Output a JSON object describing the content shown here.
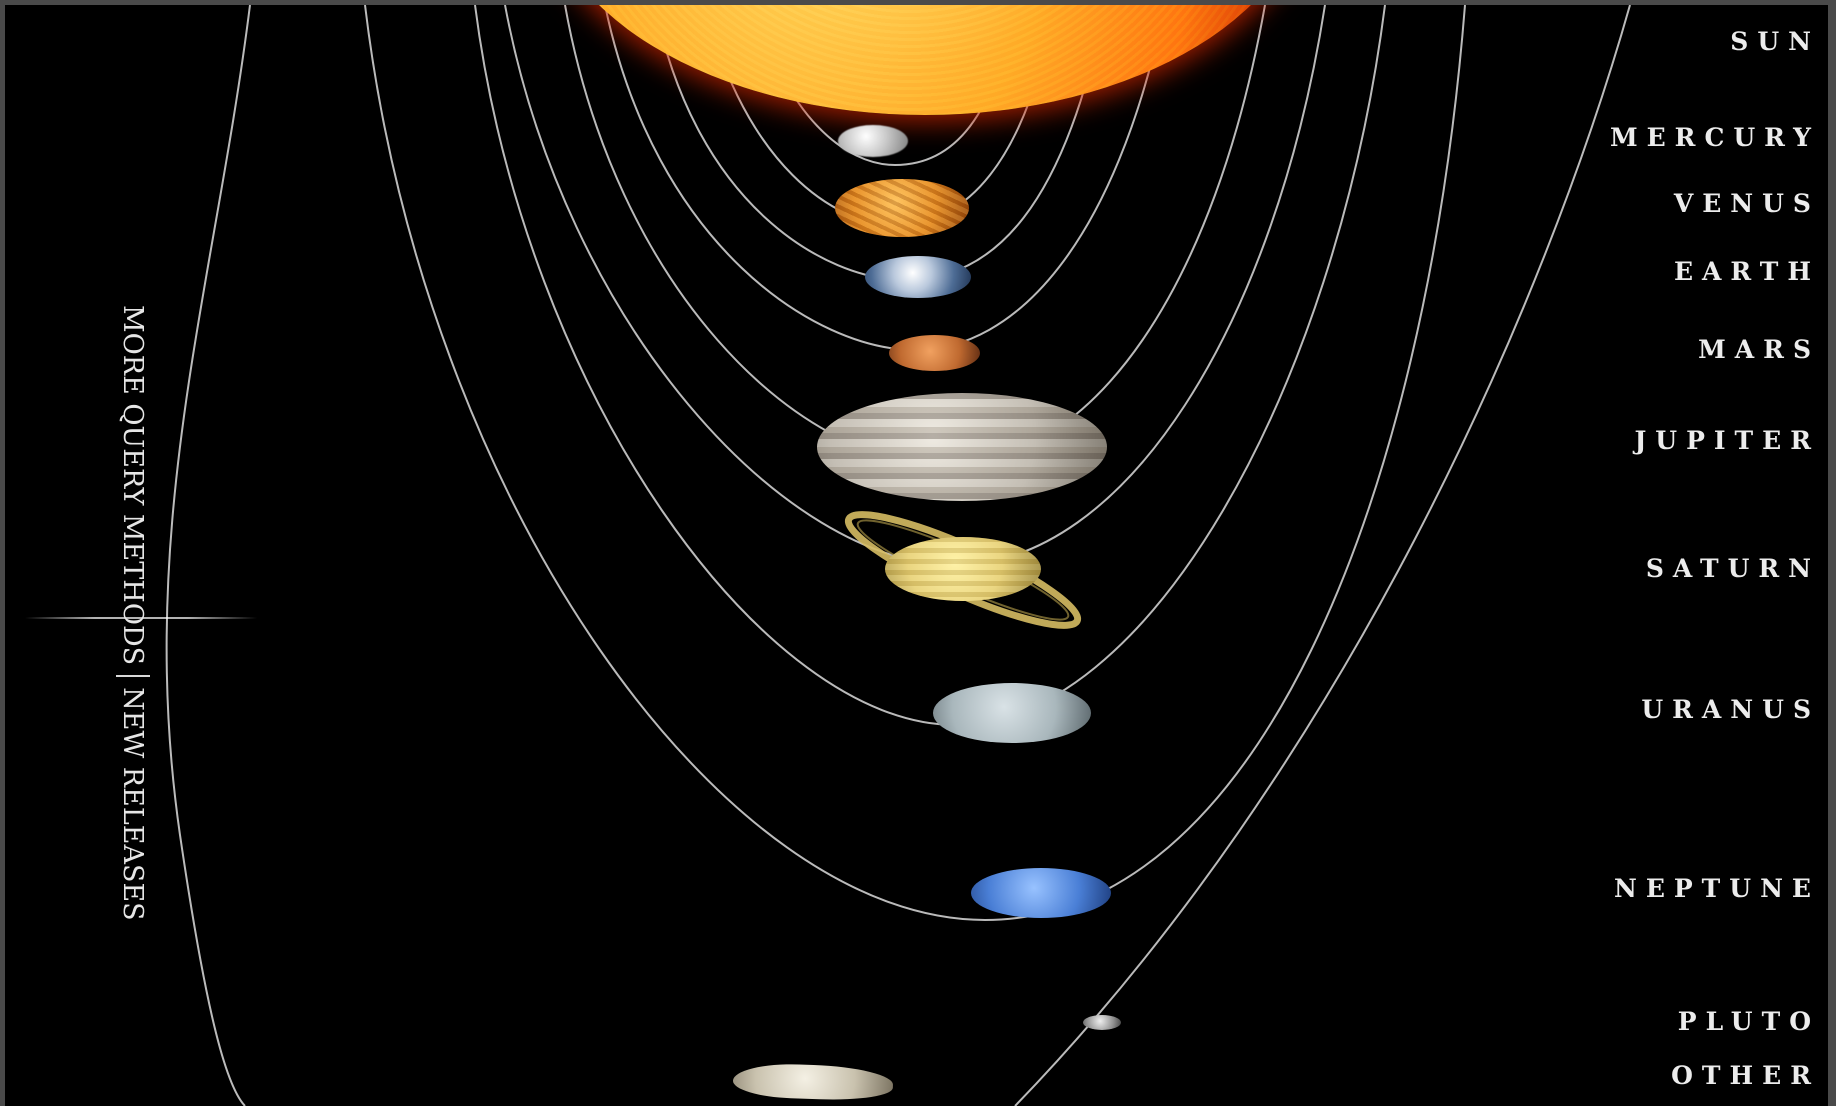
{
  "sidebar": {
    "more_query_methods": "MORE QUERY METHODS",
    "new_releases": "NEW RELEASES"
  },
  "menu": [
    {
      "id": "sun",
      "label": "SUN"
    },
    {
      "id": "mercury",
      "label": "MERCURY"
    },
    {
      "id": "venus",
      "label": "VENUS"
    },
    {
      "id": "earth",
      "label": "EARTH"
    },
    {
      "id": "mars",
      "label": "MARS"
    },
    {
      "id": "jupiter",
      "label": "JUPITER"
    },
    {
      "id": "saturn",
      "label": "SATURN"
    },
    {
      "id": "uranus",
      "label": "URANUS"
    },
    {
      "id": "neptune",
      "label": "NEPTUNE"
    },
    {
      "id": "pluto",
      "label": "PLUTO"
    },
    {
      "id": "other",
      "label": "OTHER"
    }
  ],
  "colors": {
    "background": "#000000",
    "orbit": "#cfcfcf",
    "label": "#ececec",
    "sun": "#ff8a1a"
  }
}
